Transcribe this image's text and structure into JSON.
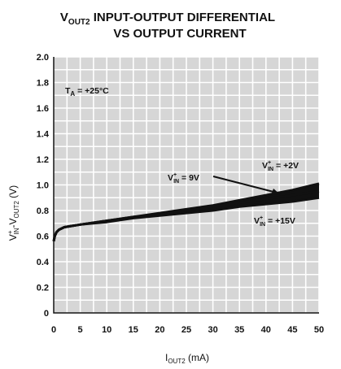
{
  "chart_data": {
    "type": "line",
    "title_line1_main": "V",
    "title_line1_sub": "OUT2",
    "title_line1_rest": " INPUT-OUTPUT DIFFERENTIAL",
    "title_line2": "VS OUTPUT CURRENT",
    "ylabel": "V⁺ IN-VOUT2 (V)",
    "ylabel_main1": "V",
    "ylabel_sup": "+",
    "ylabel_sub1": "IN",
    "ylabel_mid": "-V",
    "ylabel_sub2": "OUT2",
    "ylabel_tail": " (V)",
    "xlabel_main": "I",
    "xlabel_sub": "OUT2",
    "xlabel_tail": " (mA)",
    "xlim": [
      0,
      50
    ],
    "ylim": [
      0,
      2.0
    ],
    "x_ticks": [
      "0",
      "5",
      "10",
      "15",
      "20",
      "25",
      "30",
      "35",
      "40",
      "45",
      "50"
    ],
    "y_ticks": [
      "0",
      "0.2",
      "0.4",
      "0.6",
      "0.8",
      "1.0",
      "1.2",
      "1.4",
      "1.6",
      "1.8",
      "2.0"
    ],
    "grid": true,
    "condition_main": "T",
    "condition_sub": "A",
    "condition_tail": " = +25°C",
    "x": [
      0,
      0.2,
      0.5,
      1,
      2,
      5,
      10,
      15,
      20,
      25,
      30,
      35,
      40,
      45,
      50
    ],
    "series": [
      {
        "name": "V⁺ IN = +2V",
        "annotation_main": "V",
        "annotation_sup": "+",
        "annotation_sub": "IN",
        "annotation_tail": " = +2V",
        "values": [
          0.56,
          0.6,
          0.63,
          0.65,
          0.67,
          0.69,
          0.72,
          0.75,
          0.78,
          0.81,
          0.84,
          0.88,
          0.92,
          0.96,
          1.01
        ]
      },
      {
        "name": "V⁺ IN = 9V",
        "annotation_main": "V",
        "annotation_sup": "+",
        "annotation_sub": "IN",
        "annotation_tail": " = 9V",
        "values": [
          0.56,
          0.6,
          0.63,
          0.65,
          0.67,
          0.69,
          0.72,
          0.75,
          0.77,
          0.8,
          0.83,
          0.86,
          0.89,
          0.92,
          0.95
        ]
      },
      {
        "name": "V⁺ IN = +15V",
        "annotation_main": "V",
        "annotation_sup": "+",
        "annotation_sub": "IN",
        "annotation_tail": " = +15V",
        "values": [
          0.56,
          0.6,
          0.63,
          0.65,
          0.67,
          0.69,
          0.71,
          0.74,
          0.76,
          0.78,
          0.8,
          0.83,
          0.85,
          0.87,
          0.9
        ]
      }
    ]
  }
}
